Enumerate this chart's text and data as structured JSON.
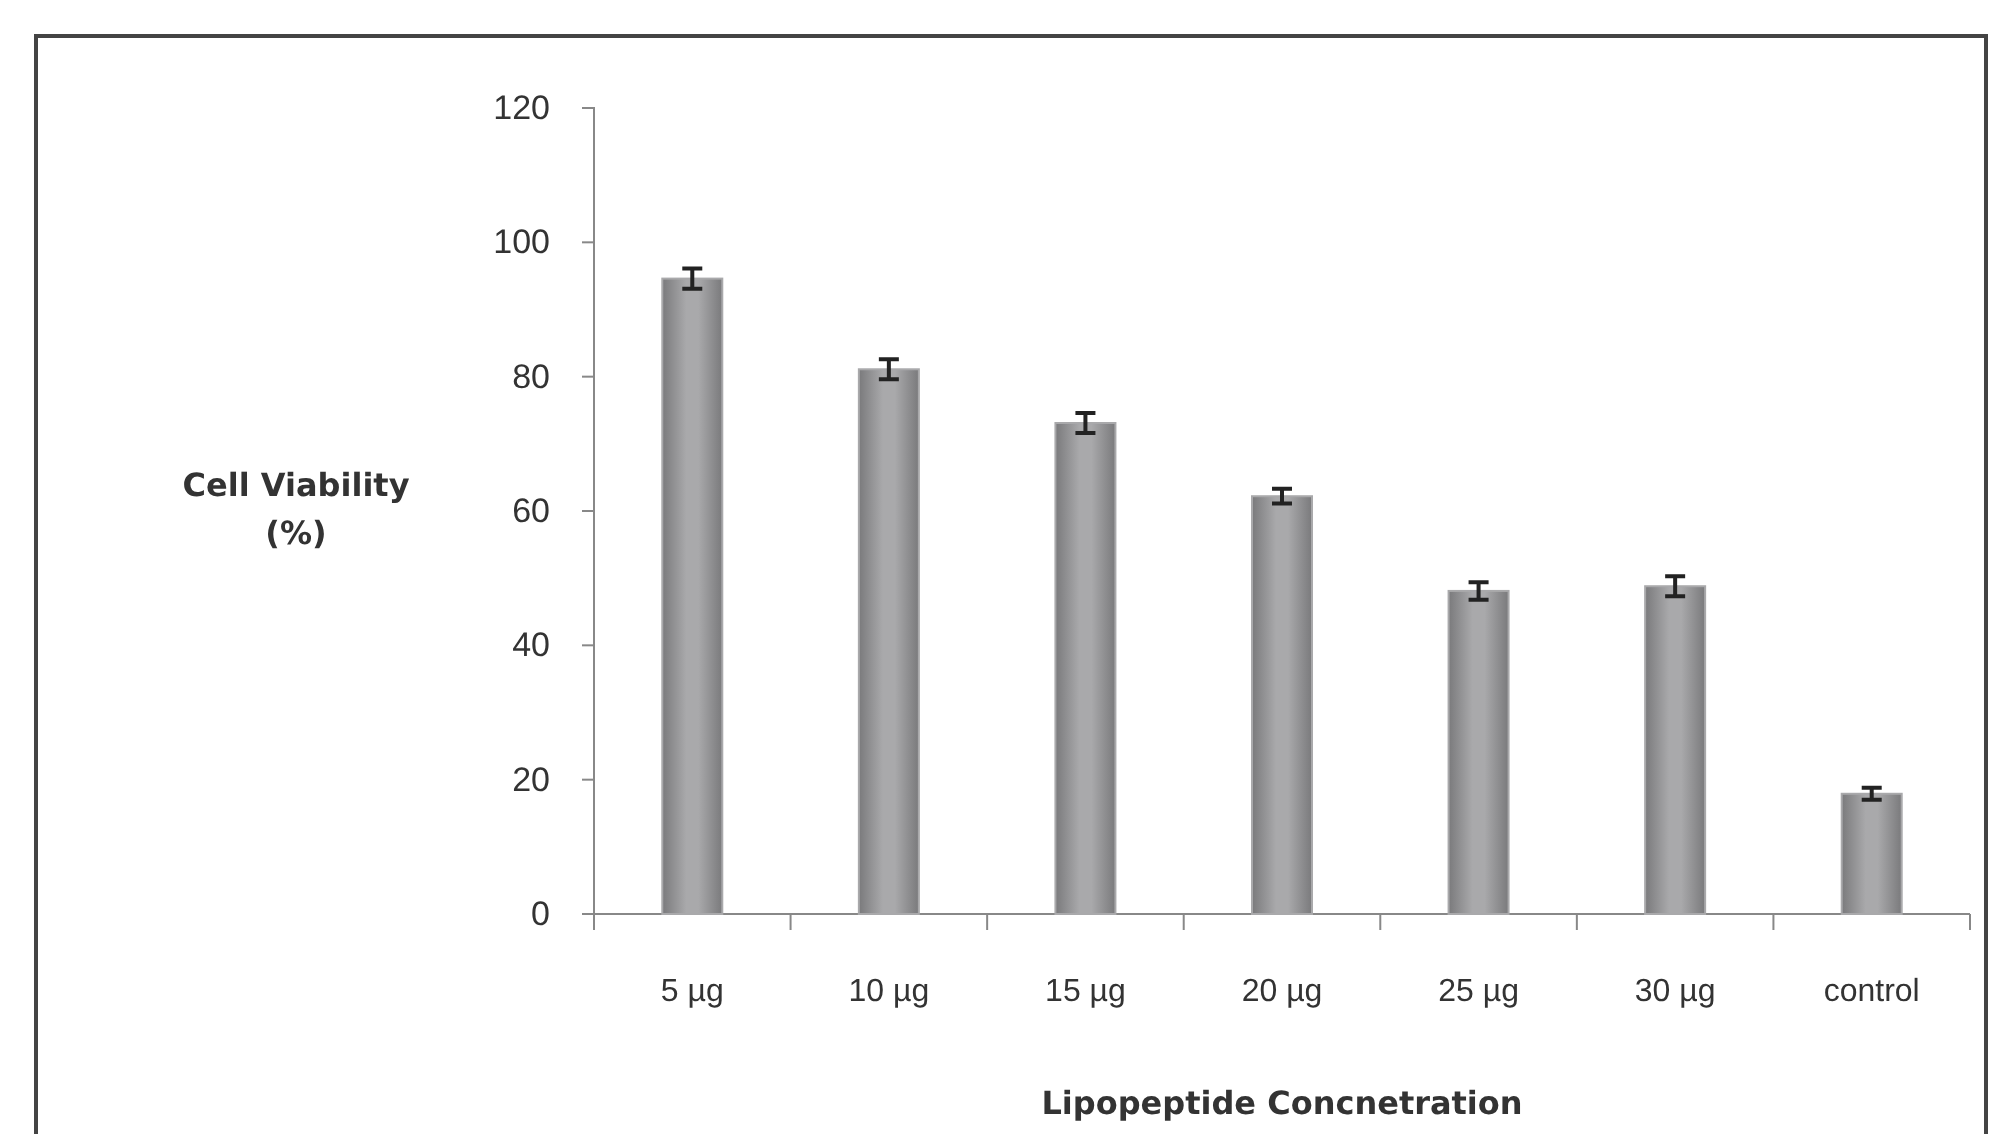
{
  "chart_data": {
    "type": "bar",
    "xlabel": "Lipopeptide Concnetration",
    "ylabel": "Cell Viability\n(%)",
    "categories": [
      "5 µg",
      "10 µg",
      "15 µg",
      "20 µg",
      "25 µg",
      "30 µg",
      "control"
    ],
    "values": [
      94.6,
      81.1,
      73.1,
      62.2,
      48.1,
      48.8,
      17.9
    ],
    "errors": [
      1.5,
      1.5,
      1.5,
      1.1,
      1.3,
      1.5,
      0.9
    ],
    "color": "#a9a9ab",
    "ylim": [
      0,
      120
    ],
    "yticks": [
      0,
      20,
      40,
      60,
      80,
      100,
      120
    ],
    "grid": false
  }
}
